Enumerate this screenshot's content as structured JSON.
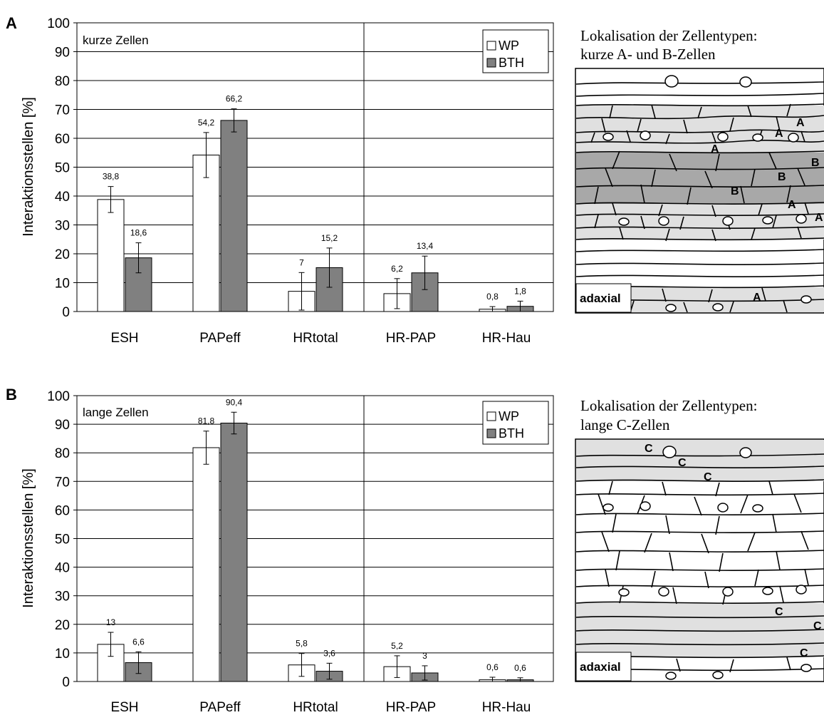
{
  "chart_data": [
    {
      "type": "bar",
      "panel_label": "A",
      "title": "kurze Zellen",
      "ylabel": "Interaktionsstellen [%]",
      "xlabel": "",
      "ylim": [
        0,
        100
      ],
      "yticks": [
        0,
        10,
        20,
        30,
        40,
        50,
        60,
        70,
        80,
        90,
        100
      ],
      "grid": true,
      "legend_position": "top-right",
      "categories": [
        "ESH",
        "PAPeff",
        "HRtotal",
        "HR-PAP",
        "HR-Hau"
      ],
      "series": [
        {
          "name": "WP",
          "color": "#ffffff",
          "values": [
            38.8,
            54.2,
            7,
            6.2,
            0.8
          ],
          "labels": [
            "38,8",
            "54,2",
            "7",
            "6,2",
            "0,8"
          ],
          "errors": [
            4.5,
            7.8,
            6.5,
            5.2,
            0.9
          ]
        },
        {
          "name": "BTH",
          "color": "#808080",
          "values": [
            18.6,
            66.2,
            15.2,
            13.4,
            1.8
          ],
          "labels": [
            "18,6",
            "66,2",
            "15,2",
            "13,4",
            "1,8"
          ],
          "errors": [
            5.2,
            4.0,
            6.8,
            5.8,
            1.8
          ]
        }
      ]
    },
    {
      "type": "bar",
      "panel_label": "B",
      "title": "lange Zellen",
      "ylabel": "Interaktionsstellen [%]",
      "xlabel": "",
      "ylim": [
        0,
        100
      ],
      "yticks": [
        0,
        10,
        20,
        30,
        40,
        50,
        60,
        70,
        80,
        90,
        100
      ],
      "grid": true,
      "legend_position": "top-right",
      "categories": [
        "ESH",
        "PAPeff",
        "HRtotal",
        "HR-PAP",
        "HR-Hau"
      ],
      "series": [
        {
          "name": "WP",
          "color": "#ffffff",
          "values": [
            13,
            81.8,
            5.8,
            5.2,
            0.6
          ],
          "labels": [
            "13",
            "81,8",
            "5,8",
            "5,2",
            "0,6"
          ],
          "errors": [
            4.2,
            5.8,
            4.0,
            3.8,
            0.9
          ]
        },
        {
          "name": "BTH",
          "color": "#808080",
          "values": [
            6.6,
            90.4,
            3.6,
            3,
            0.6
          ],
          "labels": [
            "6,6",
            "90,4",
            "3,6",
            "3",
            "0,6"
          ],
          "errors": [
            3.8,
            3.8,
            2.8,
            2.5,
            0.7
          ]
        }
      ]
    }
  ],
  "illustrations": [
    {
      "caption_line1": "Lokalisation der Zellentypen:",
      "caption_line2": "kurze A- und B-Zellen",
      "side_label": "adaxial",
      "cell_labels": [
        "A",
        "A",
        "A",
        "B",
        "B",
        "B",
        "A",
        "A",
        "A"
      ]
    },
    {
      "caption_line1": "Lokalisation der Zellentypen:",
      "caption_line2": "lange C-Zellen",
      "side_label": "adaxial",
      "cell_labels": [
        "C",
        "C",
        "C",
        "C",
        "C",
        "C"
      ]
    }
  ]
}
